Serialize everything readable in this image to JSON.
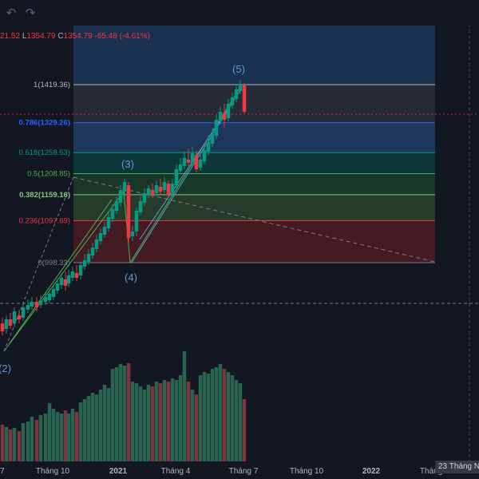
{
  "toolbar": {
    "undo_icon": "undo-icon",
    "redo_icon": "redo-icon"
  },
  "legend": {
    "high_value": "21.52",
    "low_label": "L",
    "low_value": "1354.79",
    "close_label": "C",
    "close_value": "1354.79",
    "change": "-65.48 (-4.61%)"
  },
  "crosshair": {
    "date_label": "23 Tháng N"
  },
  "chart_data": {
    "type": "candlestick",
    "x_tick_labels": [
      "7",
      "Tháng 10",
      "2021",
      "Tháng 4",
      "Tháng 7",
      "Tháng 10",
      "2022",
      "Tháng"
    ],
    "fib_levels": [
      {
        "ratio": "1",
        "price": 1419.36,
        "label": "1(1419.36)",
        "color": "#b2b5be"
      },
      {
        "ratio": "0.786",
        "price": 1329.26,
        "label": "0.786(1329.26)",
        "color": "#2962ff"
      },
      {
        "ratio": "0.618",
        "price": 1258.53,
        "label": "0.618(1258.53)",
        "color": "#089981"
      },
      {
        "ratio": "0.5",
        "price": 1208.85,
        "label": "0.5(1208.85)",
        "color": "#4caf50"
      },
      {
        "ratio": "0.382",
        "price": 1159.16,
        "label": "0.382(1159.16)",
        "color": "#81c784"
      },
      {
        "ratio": "0.236",
        "price": 1097.69,
        "label": "0.236(1097.69)",
        "color": "#f23645"
      },
      {
        "ratio": "0",
        "price": 998.33,
        "label": "0(998.33)",
        "color": "#787b86"
      }
    ],
    "wave_labels": [
      "(2)",
      "(3)",
      "(4)",
      "(5)"
    ],
    "colors": {
      "up": "#089981",
      "down": "#f23645",
      "background": "#131722"
    }
  }
}
